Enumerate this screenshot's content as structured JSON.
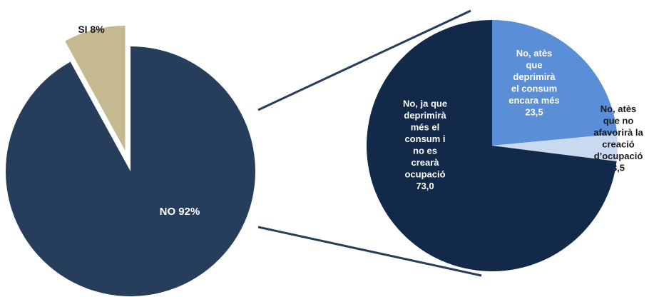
{
  "chart_data": [
    {
      "type": "pie",
      "title": "",
      "slices": [
        {
          "name": "SI",
          "value": 8,
          "label_lines": [
            "SI 8%"
          ],
          "color": "#c5b992",
          "exploded": true,
          "label_color": "#1a1a1a"
        },
        {
          "name": "NO",
          "value": 92,
          "label_lines": [
            "NO 92%"
          ],
          "color": "#263d5c",
          "exploded": false,
          "label_color": "#ffffff"
        }
      ]
    },
    {
      "type": "pie",
      "title": "",
      "breakdown_of": "NO",
      "slices": [
        {
          "name": "No, atès que deprimirà el consum encara més",
          "value": 23.5,
          "label_lines": [
            "No, atès",
            "que",
            "deprimirà",
            "el consum",
            "encara més",
            "23,5"
          ],
          "color": "#5a8ed6",
          "label_color": "#ffffff"
        },
        {
          "name": "No, atès que no afavorirà la creació d’ocupació",
          "value": 3.5,
          "label_lines": [
            "No, atès",
            "que no",
            "afavorirà la",
            "creació",
            "d’ocupació",
            "3,5"
          ],
          "color": "#c9d9ef",
          "label_color": "#1a1a1a"
        },
        {
          "name": "No, ja que deprimirà més el consum i no es crearà ocupació",
          "value": 73.0,
          "label_lines": [
            "No, ja que",
            "deprimirà",
            "més el",
            "consum i",
            "no es",
            "crearà",
            "ocupació",
            "73,0"
          ],
          "color": "#13294a",
          "label_color": "#ffffff"
        }
      ]
    }
  ],
  "colors": {
    "connector": "#263d5c"
  }
}
